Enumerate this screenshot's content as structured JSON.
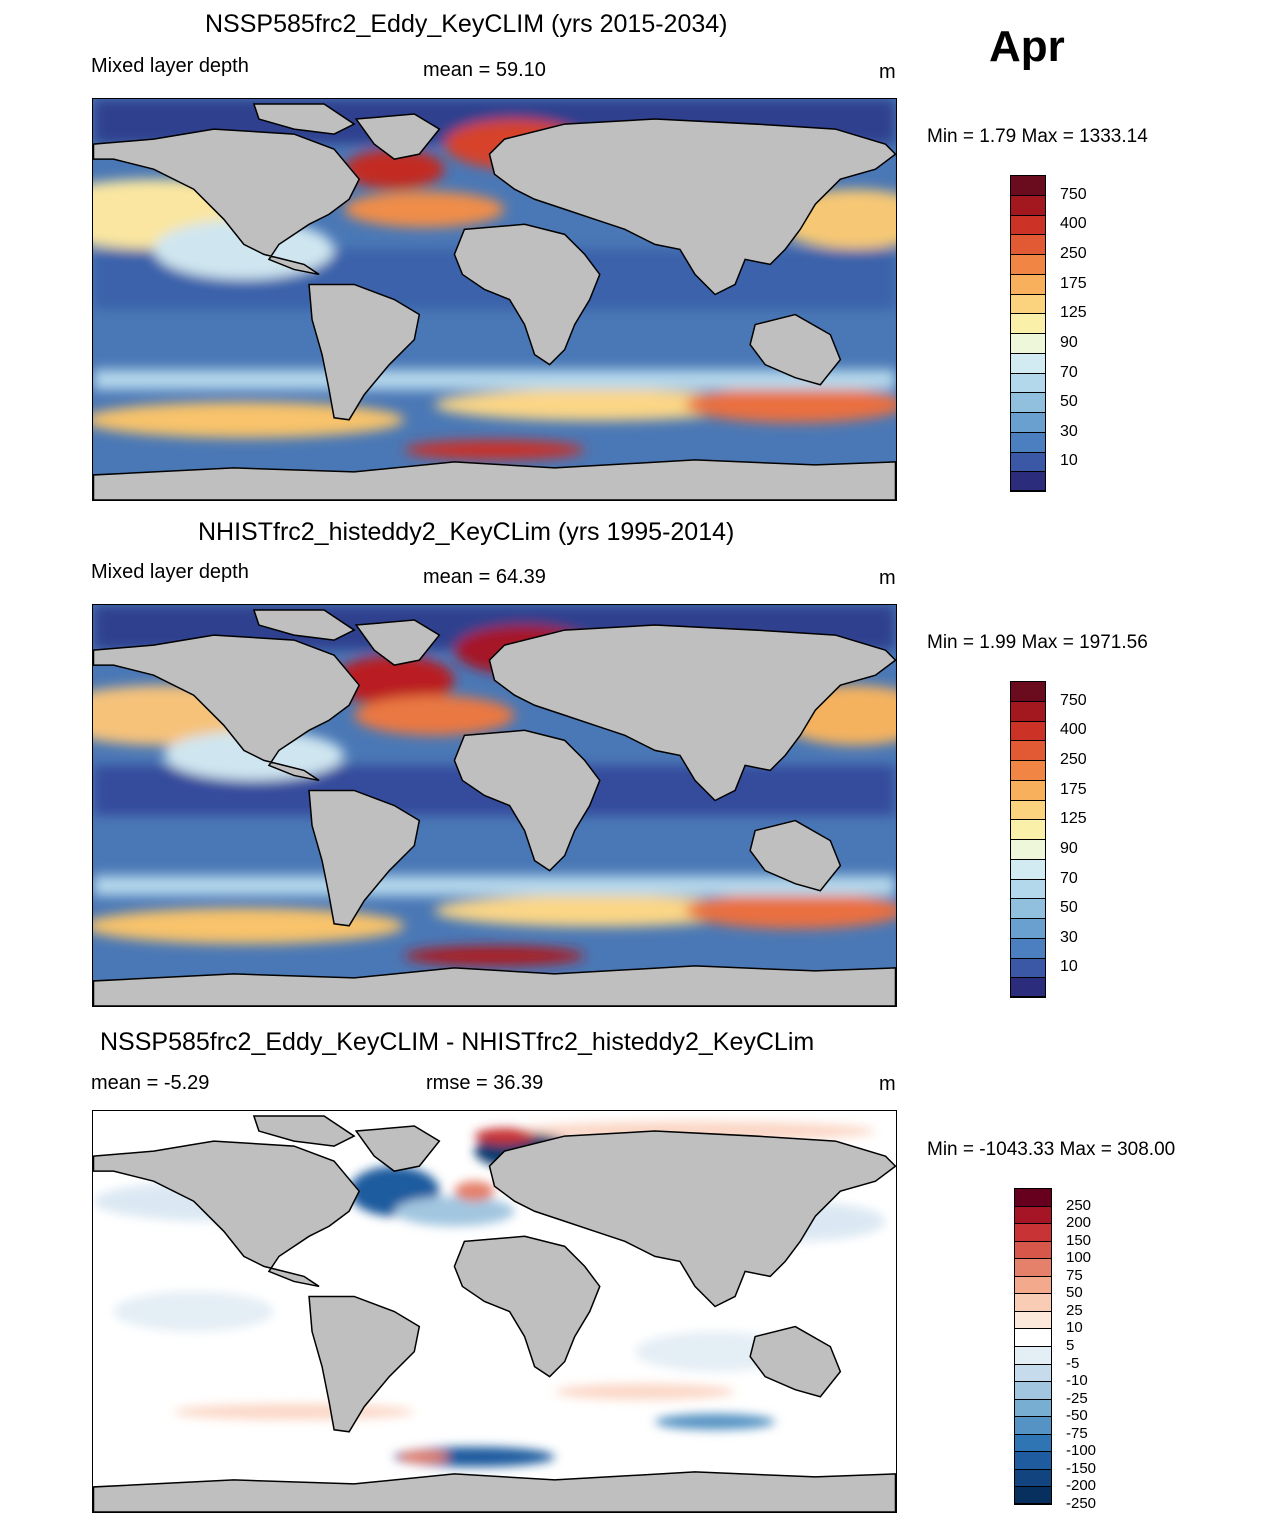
{
  "month": "Apr",
  "land_color": "#bfbfbf",
  "panels": [
    {
      "id": "future",
      "title": "NSSP585frc2_Eddy_KeyCLIM (yrs 2015-2034)",
      "left_label": "Mixed layer depth",
      "center_label": "mean =  59.10",
      "units": "m",
      "minmax": "Min =   1.79 Max = 1333.14",
      "palette": "mld"
    },
    {
      "id": "historical",
      "title": "NHISTfrc2_histeddy2_KeyCLim (yrs 1995-2014)",
      "left_label": "Mixed layer depth",
      "center_label": "mean =  64.39",
      "units": "m",
      "minmax": "Min =   1.99 Max = 1971.56",
      "palette": "mld"
    },
    {
      "id": "difference",
      "title": "NSSP585frc2_Eddy_KeyCLIM - NHISTfrc2_histeddy2_KeyCLim",
      "left_label": "mean =  -5.29",
      "center_label": "rmse =  36.39",
      "units": "m",
      "minmax": "Min = -1043.33 Max = 308.00",
      "palette": "diff"
    }
  ],
  "colorbars": {
    "mld": {
      "colors": [
        "#6b0b1e",
        "#a3171f",
        "#cc3226",
        "#e25a34",
        "#f08544",
        "#f8b05c",
        "#fbd37f",
        "#fbf0a9",
        "#eef7da",
        "#d2eaf2",
        "#b3d8eb",
        "#91c0df",
        "#6aa0cf",
        "#4b7fbf",
        "#3a58a5",
        "#2c2c7c"
      ],
      "labels": [
        "750",
        "400",
        "250",
        "175",
        "125",
        "90",
        "70",
        "50",
        "30",
        "10"
      ]
    },
    "diff": {
      "colors": [
        "#67001f",
        "#a51526",
        "#c83436",
        "#d7574b",
        "#e5806b",
        "#f2a98c",
        "#f9ccb6",
        "#fde8dc",
        "#ffffff",
        "#e4eef5",
        "#c6dbec",
        "#a2c6e0",
        "#79aed3",
        "#5493c3",
        "#2f74b3",
        "#1f5b9f",
        "#12447f",
        "#07305e"
      ],
      "labels": [
        "250",
        "200",
        "150",
        "100",
        "75",
        "50",
        "25",
        "10",
        "5",
        "-5",
        "-10",
        "-25",
        "-50",
        "-75",
        "-100",
        "-150",
        "-200",
        "-250"
      ]
    }
  }
}
